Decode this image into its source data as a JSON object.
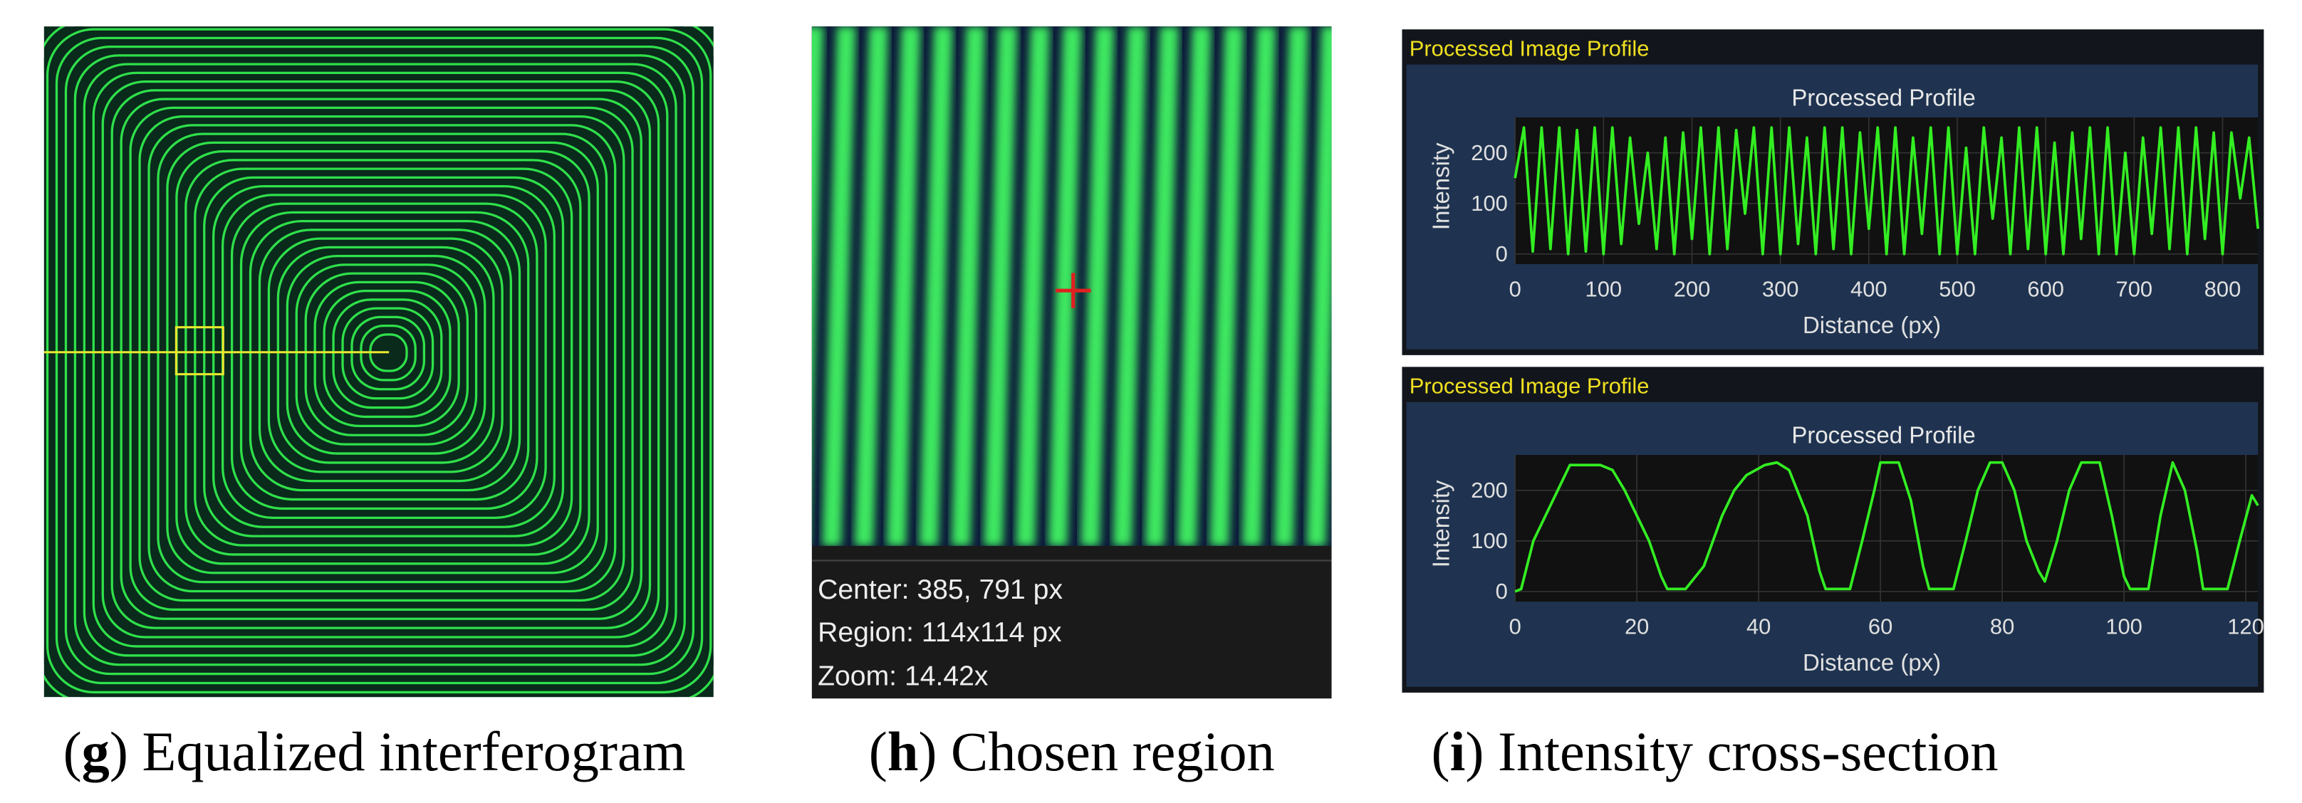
{
  "panels": {
    "g": {
      "letter": "g",
      "caption": "Equalized interferogram"
    },
    "h": {
      "letter": "h",
      "caption": "Chosen region",
      "info": [
        "Center: 385, 791 px",
        "Region: 114x114 px",
        "Zoom: 14.42x"
      ]
    },
    "i": {
      "letter": "i",
      "caption": "Intensity cross-section"
    }
  },
  "chart_data": [
    {
      "type": "line",
      "window_title": "Processed Image Profile",
      "title": "Processed Profile",
      "xlabel": "Distance (px)",
      "ylabel": "Intensity",
      "color": "#33ee22",
      "xlim": [
        0,
        840
      ],
      "ylim": [
        -20,
        270
      ],
      "xticks": [
        0,
        100,
        200,
        300,
        400,
        500,
        600,
        700,
        800
      ],
      "yticks": [
        0,
        100,
        200
      ],
      "grid": true,
      "x": [
        0,
        10,
        20,
        30,
        40,
        50,
        60,
        70,
        80,
        90,
        100,
        110,
        120,
        130,
        140,
        150,
        160,
        170,
        180,
        190,
        200,
        210,
        220,
        230,
        240,
        250,
        260,
        270,
        280,
        290,
        300,
        310,
        320,
        330,
        340,
        350,
        360,
        370,
        380,
        390,
        400,
        410,
        420,
        430,
        440,
        450,
        460,
        470,
        480,
        490,
        500,
        510,
        520,
        530,
        540,
        550,
        560,
        570,
        580,
        590,
        600,
        610,
        620,
        630,
        640,
        650,
        660,
        670,
        680,
        690,
        700,
        710,
        720,
        730,
        740,
        750,
        760,
        770,
        780,
        790,
        800,
        810,
        820,
        830,
        840
      ],
      "values": [
        150,
        250,
        5,
        250,
        10,
        250,
        0,
        245,
        5,
        250,
        0,
        250,
        20,
        230,
        60,
        200,
        10,
        230,
        0,
        240,
        30,
        250,
        0,
        250,
        10,
        245,
        80,
        250,
        0,
        250,
        0,
        250,
        20,
        230,
        0,
        250,
        10,
        250,
        0,
        240,
        50,
        250,
        0,
        250,
        0,
        230,
        40,
        250,
        0,
        250,
        0,
        210,
        0,
        250,
        70,
        230,
        0,
        250,
        10,
        250,
        0,
        220,
        0,
        240,
        30,
        250,
        0,
        250,
        0,
        200,
        0,
        230,
        40,
        250,
        10,
        250,
        0,
        250,
        30,
        240,
        0,
        240,
        110,
        230,
        50
      ]
    },
    {
      "type": "line",
      "window_title": "Processed Image Profile",
      "title": "Processed Profile",
      "xlabel": "Distance (px)",
      "ylabel": "Intensity",
      "color": "#33ee22",
      "xlim": [
        0,
        122
      ],
      "ylim": [
        -20,
        270
      ],
      "xticks": [
        0,
        20,
        40,
        60,
        80,
        100,
        120
      ],
      "yticks": [
        0,
        100,
        200
      ],
      "grid": true,
      "x": [
        0,
        1,
        3,
        5,
        7,
        9,
        14,
        16,
        18,
        20,
        22,
        24,
        25,
        28,
        31,
        34,
        36,
        38,
        41,
        43,
        45,
        48,
        50,
        51,
        55,
        57,
        59,
        60,
        63,
        65,
        67,
        68,
        72,
        74,
        76,
        78,
        80,
        82,
        84,
        86,
        87,
        89,
        91,
        93,
        96,
        98,
        100,
        101,
        104,
        106,
        108,
        110,
        112,
        113,
        117,
        119,
        121,
        122
      ],
      "values": [
        0,
        5,
        100,
        150,
        200,
        250,
        250,
        240,
        200,
        150,
        100,
        30,
        5,
        5,
        50,
        150,
        200,
        230,
        250,
        255,
        240,
        150,
        40,
        5,
        5,
        100,
        200,
        255,
        255,
        180,
        50,
        5,
        5,
        100,
        200,
        255,
        255,
        200,
        100,
        40,
        20,
        100,
        200,
        255,
        255,
        150,
        30,
        5,
        5,
        150,
        255,
        200,
        80,
        5,
        5,
        100,
        190,
        170
      ]
    }
  ]
}
